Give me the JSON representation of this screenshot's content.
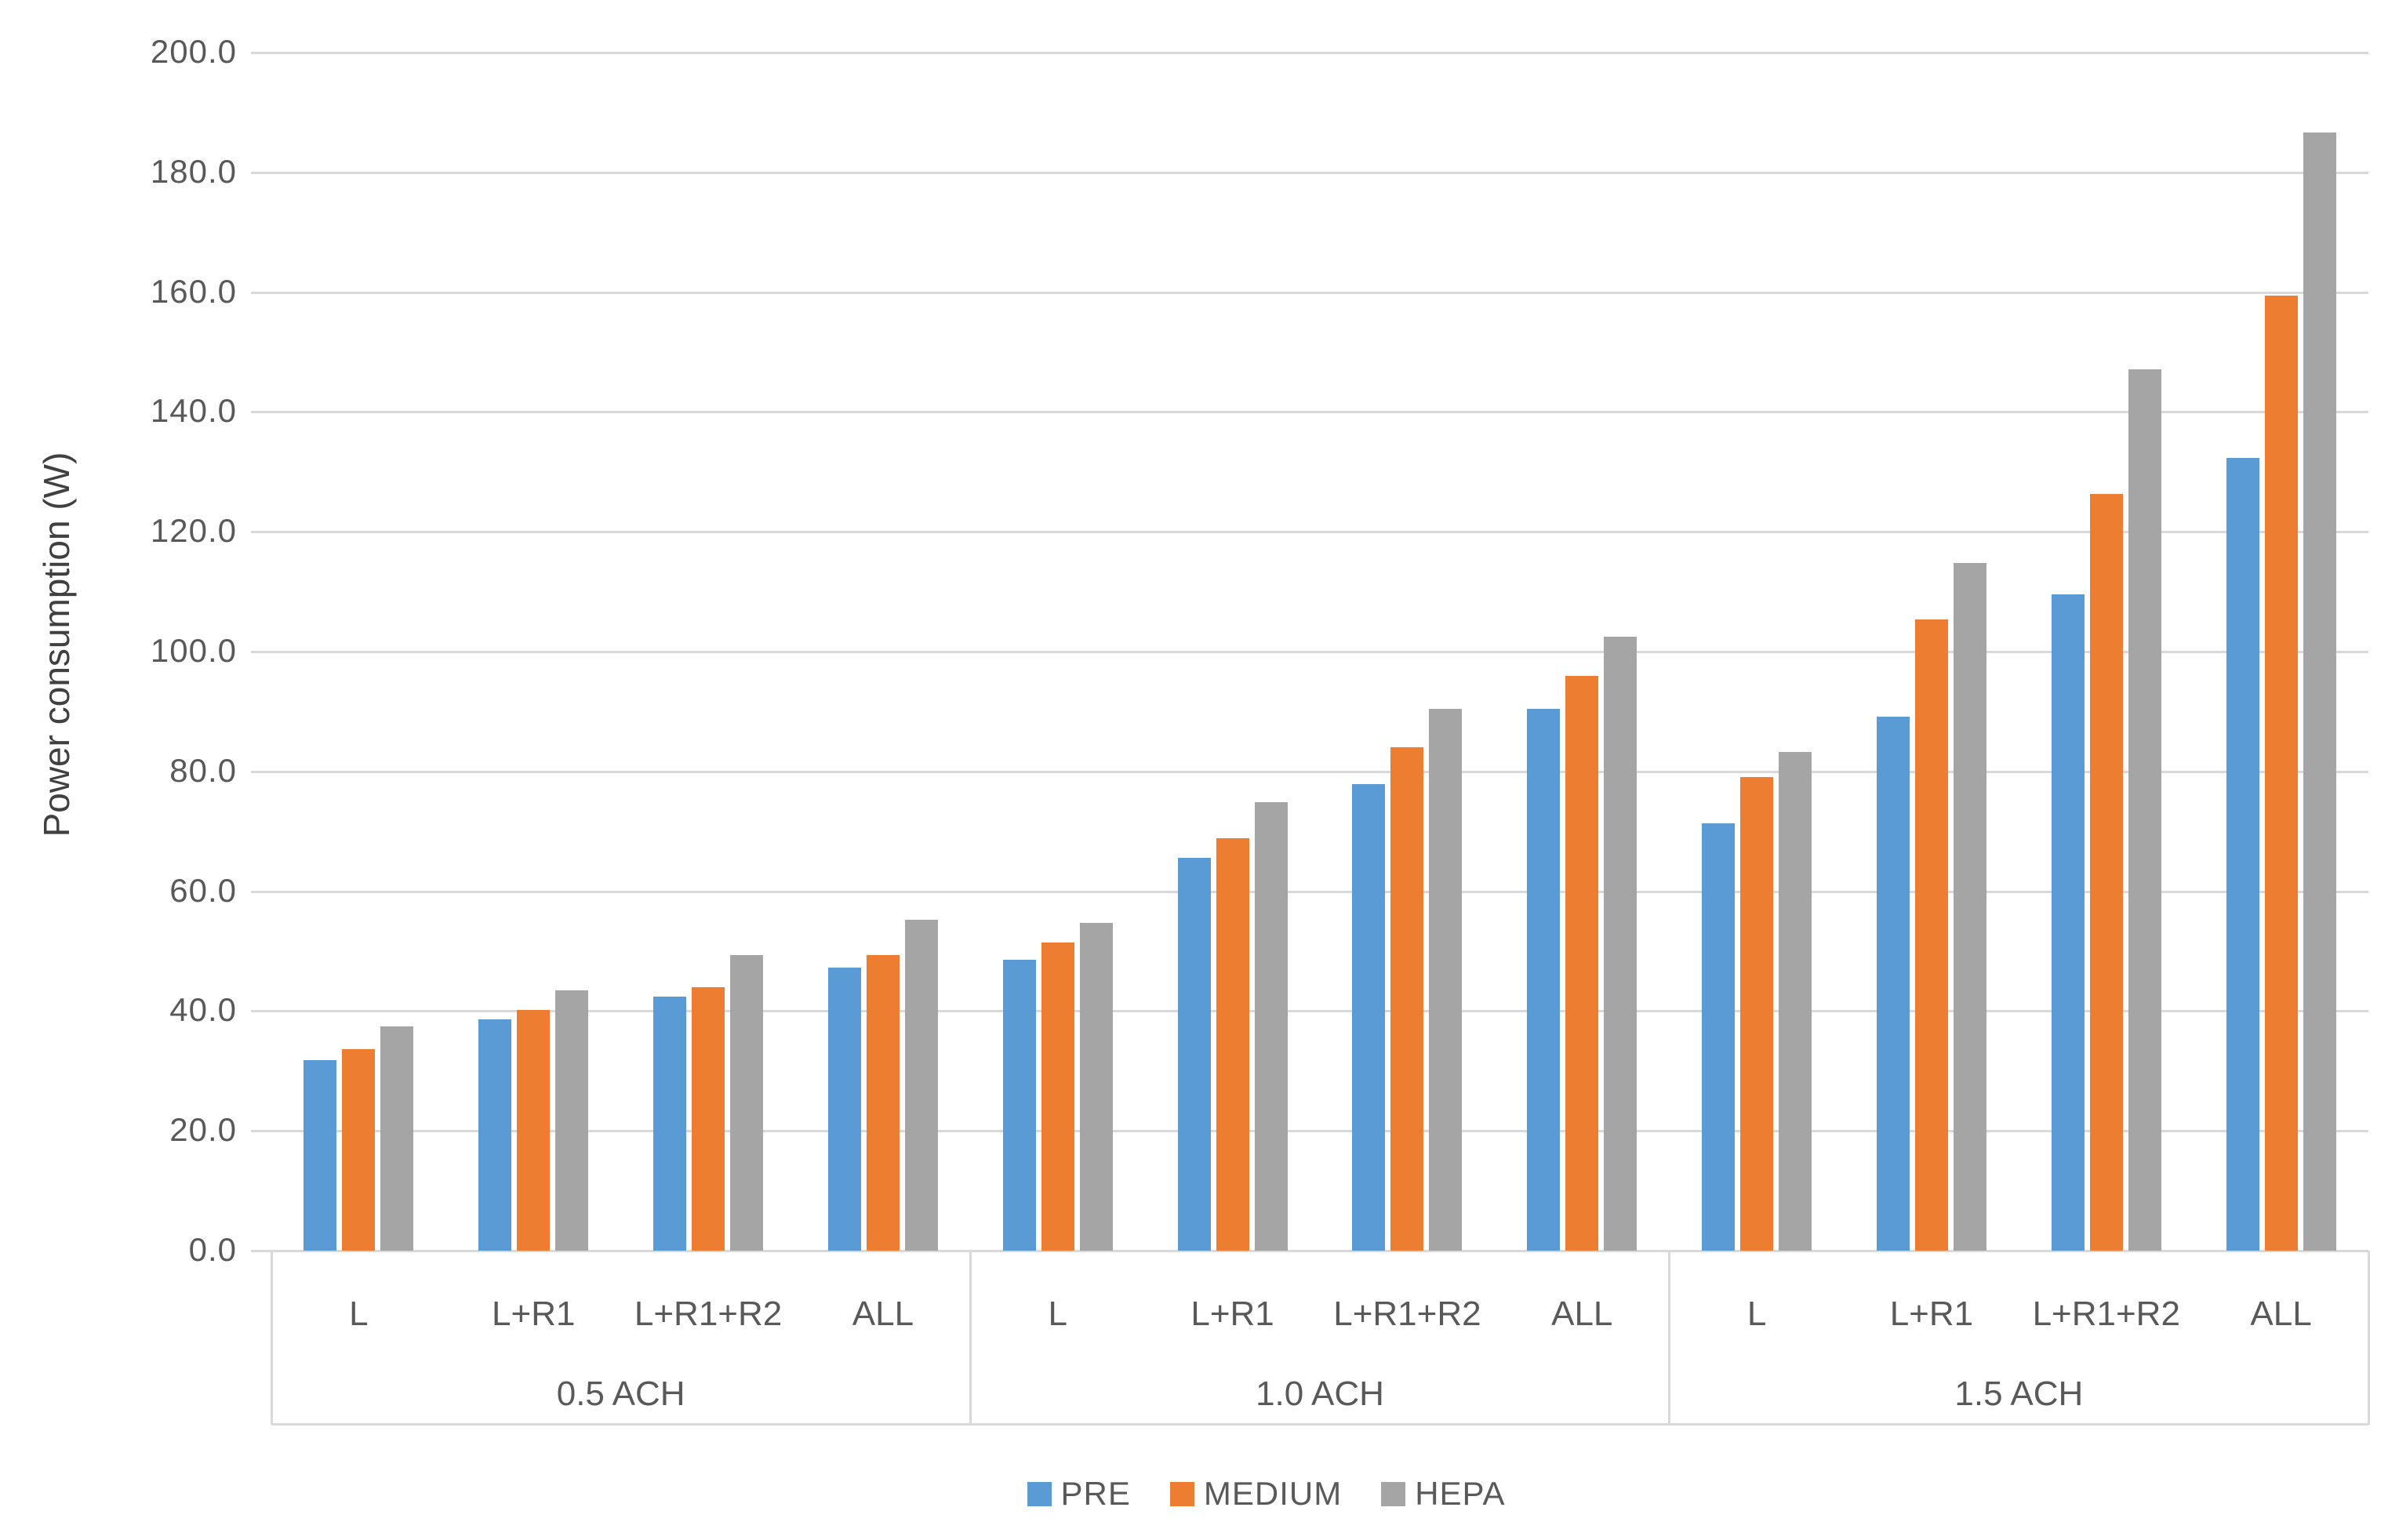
{
  "chart_data": {
    "type": "bar",
    "title": "",
    "xlabel": "",
    "ylabel": "Power consumption (W)",
    "ylim": [
      0,
      200
    ],
    "ytick_step": 20,
    "yticks": [
      "0.0",
      "20.0",
      "40.0",
      "60.0",
      "80.0",
      "100.0",
      "120.0",
      "140.0",
      "160.0",
      "180.0",
      "200.0"
    ],
    "grid": "horizontal",
    "legend_position": "bottom-center",
    "sections": [
      "0.5 ACH",
      "1.0 ACH",
      "1.5 ACH"
    ],
    "categories": [
      "L",
      "L+R1",
      "L+R1+R2",
      "ALL"
    ],
    "series": [
      {
        "name": "PRE",
        "color": "#5B9BD5",
        "values": [
          [
            31.8,
            38.6,
            42.4,
            47.2
          ],
          [
            48.6,
            65.6,
            77.9,
            90.5
          ],
          [
            71.3,
            89.2,
            109.6,
            132.3
          ]
        ]
      },
      {
        "name": "MEDIUM",
        "color": "#ED7D31",
        "values": [
          [
            33.7,
            40.2,
            44.0,
            49.4
          ],
          [
            51.5,
            68.9,
            84.0,
            96.0
          ],
          [
            79.1,
            105.4,
            126.3,
            159.4
          ]
        ]
      },
      {
        "name": "HEPA",
        "color": "#A5A5A5",
        "values": [
          [
            37.5,
            43.5,
            49.4,
            55.3
          ],
          [
            54.7,
            74.9,
            90.5,
            102.5
          ],
          [
            83.3,
            114.8,
            147.1,
            186.6
          ]
        ]
      }
    ]
  },
  "colors": {
    "background": "#FFFFFF",
    "gridline": "#D9D9D9",
    "axis_border": "#D9D9D9",
    "tick_text": "#595959",
    "category_text": "#595959",
    "section_text": "#595959",
    "ylabel_text": "#404040",
    "legend_text": "#595959"
  }
}
